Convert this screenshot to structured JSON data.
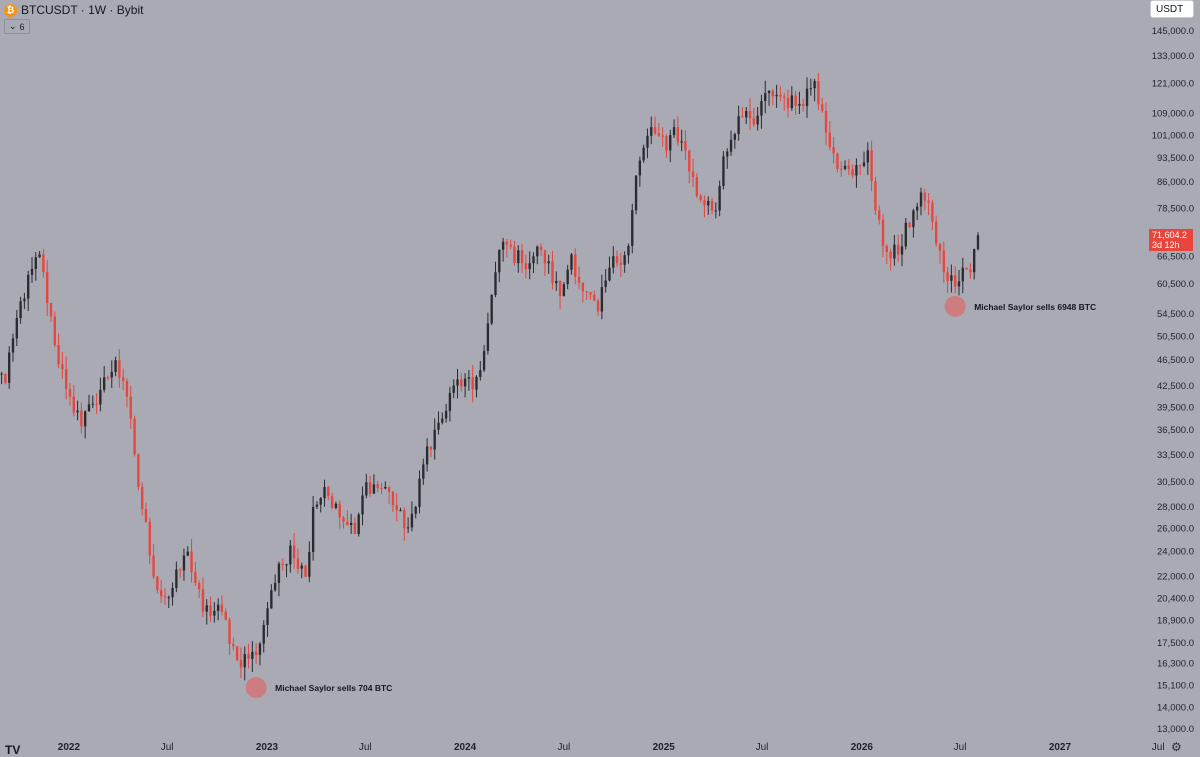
{
  "header": {
    "title": "BTCUSDT · 1W · Bybit",
    "indicator_count": "6",
    "currency": "USDT"
  },
  "last_price": {
    "value": "71,604.2",
    "countdown": "3d 12h"
  },
  "colors": {
    "up": "#2a2b30",
    "down": "#e8453c",
    "background": "#a9aab3",
    "marker": "#d0787a"
  },
  "chart_data": {
    "type": "candlestick",
    "symbol": "BTCUSDT",
    "interval": "1W",
    "exchange": "Bybit",
    "y_scale": "log",
    "y_ticks": [
      13000,
      14000,
      15100,
      16300,
      17500,
      18900,
      20400,
      22000,
      24000,
      26000,
      28000,
      30500,
      33500,
      36500,
      39500,
      42500,
      46500,
      50500,
      54500,
      60500,
      66500,
      78500,
      86000,
      93500,
      101000,
      109000,
      121000,
      133000,
      145000
    ],
    "y_tick_labels": [
      "13,000.0",
      "14,000.0",
      "15,100.0",
      "16,300.0",
      "17,500.0",
      "18,900.0",
      "20,400.0",
      "22,000.0",
      "24,000.0",
      "26,000.0",
      "28,000.0",
      "30,500.0",
      "33,500.0",
      "36,500.0",
      "39,500.0",
      "42,500.0",
      "46,500.0",
      "50,500.0",
      "54,500.0",
      "60,500.0",
      "66,500.0",
      "78,500.0",
      "86,000.0",
      "93,500.0",
      "101,000.0",
      "109,000.0",
      "121,000.0",
      "133,000.0",
      "145,000.0"
    ],
    "x_ticks": [
      {
        "label": "2022",
        "date": "2022-01-01"
      },
      {
        "label": "Jul",
        "date": "2022-07-01"
      },
      {
        "label": "2023",
        "date": "2023-01-01"
      },
      {
        "label": "Jul",
        "date": "2023-07-01"
      },
      {
        "label": "2024",
        "date": "2024-01-01"
      },
      {
        "label": "Jul",
        "date": "2024-07-01"
      },
      {
        "label": "2025",
        "date": "2025-01-01"
      },
      {
        "label": "Jul",
        "date": "2025-07-01"
      },
      {
        "label": "2026",
        "date": "2026-01-01"
      },
      {
        "label": "Jul",
        "date": "2026-07-01"
      },
      {
        "label": "2027",
        "date": "2027-01-01"
      },
      {
        "label": "Jul",
        "date": "2027-07-01"
      }
    ],
    "closes": [
      {
        "date": "2021-08-09",
        "close": 47000
      },
      {
        "date": "2021-09-06",
        "close": 43000
      },
      {
        "date": "2021-10-04",
        "close": 57000
      },
      {
        "date": "2021-11-08",
        "close": 67000
      },
      {
        "date": "2021-12-06",
        "close": 49000
      },
      {
        "date": "2022-01-03",
        "close": 41000
      },
      {
        "date": "2022-01-24",
        "close": 37000
      },
      {
        "date": "2022-02-14",
        "close": 40000
      },
      {
        "date": "2022-03-28",
        "close": 46500
      },
      {
        "date": "2022-04-25",
        "close": 38000
      },
      {
        "date": "2022-05-09",
        "close": 30000
      },
      {
        "date": "2022-06-13",
        "close": 21000
      },
      {
        "date": "2022-07-04",
        "close": 20500
      },
      {
        "date": "2022-08-08",
        "close": 24000
      },
      {
        "date": "2022-09-05",
        "close": 19500
      },
      {
        "date": "2022-10-10",
        "close": 19500
      },
      {
        "date": "2022-11-07",
        "close": 16500
      },
      {
        "date": "2022-12-12",
        "close": 16800
      },
      {
        "date": "2023-01-09",
        "close": 21000
      },
      {
        "date": "2023-02-13",
        "close": 24500
      },
      {
        "date": "2023-03-13",
        "close": 22000
      },
      {
        "date": "2023-03-27",
        "close": 28000
      },
      {
        "date": "2023-04-17",
        "close": 30000
      },
      {
        "date": "2023-05-15",
        "close": 27000
      },
      {
        "date": "2023-06-12",
        "close": 25500
      },
      {
        "date": "2023-07-03",
        "close": 30500
      },
      {
        "date": "2023-08-14",
        "close": 29500
      },
      {
        "date": "2023-09-11",
        "close": 26000
      },
      {
        "date": "2023-10-02",
        "close": 28000
      },
      {
        "date": "2023-10-23",
        "close": 34500
      },
      {
        "date": "2023-11-20",
        "close": 38000
      },
      {
        "date": "2023-12-18",
        "close": 43500
      },
      {
        "date": "2024-01-15",
        "close": 42000
      },
      {
        "date": "2024-02-05",
        "close": 48000
      },
      {
        "date": "2024-02-26",
        "close": 63000
      },
      {
        "date": "2024-03-11",
        "close": 70000
      },
      {
        "date": "2024-04-15",
        "close": 65000
      },
      {
        "date": "2024-05-20",
        "close": 68000
      },
      {
        "date": "2024-06-24",
        "close": 58000
      },
      {
        "date": "2024-07-15",
        "close": 67000
      },
      {
        "date": "2024-08-05",
        "close": 59000
      },
      {
        "date": "2024-09-02",
        "close": 55000
      },
      {
        "date": "2024-09-23",
        "close": 64000
      },
      {
        "date": "2024-10-28",
        "close": 69000
      },
      {
        "date": "2024-11-11",
        "close": 88000
      },
      {
        "date": "2024-12-09",
        "close": 104000
      },
      {
        "date": "2025-01-06",
        "close": 96000
      },
      {
        "date": "2025-01-20",
        "close": 104000
      },
      {
        "date": "2025-02-10",
        "close": 96000
      },
      {
        "date": "2025-03-03",
        "close": 82000
      },
      {
        "date": "2025-04-07",
        "close": 78000
      },
      {
        "date": "2025-04-21",
        "close": 94000
      },
      {
        "date": "2025-05-19",
        "close": 108000
      },
      {
        "date": "2025-06-16",
        "close": 105000
      },
      {
        "date": "2025-07-14",
        "close": 118000
      },
      {
        "date": "2025-08-11",
        "close": 115000
      },
      {
        "date": "2025-09-01",
        "close": 112000
      },
      {
        "date": "2025-10-06",
        "close": 122000
      },
      {
        "date": "2025-10-20",
        "close": 110000
      },
      {
        "date": "2025-11-10",
        "close": 95000
      },
      {
        "date": "2025-11-24",
        "close": 90000
      },
      {
        "date": "2025-12-15",
        "close": 88000
      },
      {
        "date": "2026-01-12",
        "close": 96000
      },
      {
        "date": "2026-01-26",
        "close": 78000
      },
      {
        "date": "2026-02-09",
        "close": 69000
      },
      {
        "date": "2026-03-09",
        "close": 67000
      },
      {
        "date": "2026-04-06",
        "close": 78000
      },
      {
        "date": "2026-04-20",
        "close": 83000
      },
      {
        "date": "2026-05-11",
        "close": 75000
      },
      {
        "date": "2026-06-01",
        "close": 63000
      },
      {
        "date": "2026-06-22",
        "close": 60000
      },
      {
        "date": "2026-07-06",
        "close": 64000
      },
      {
        "date": "2026-07-20",
        "close": 63000
      },
      {
        "date": "2026-08-03",
        "close": 71604.2
      }
    ],
    "annotations": [
      {
        "label": "Michael Saylor sells 704 BTC",
        "date": "2022-12-12",
        "price": 15000
      },
      {
        "label": "Michael Saylor sells 6948 BTC",
        "date": "2026-06-22",
        "price": 56000
      }
    ]
  }
}
